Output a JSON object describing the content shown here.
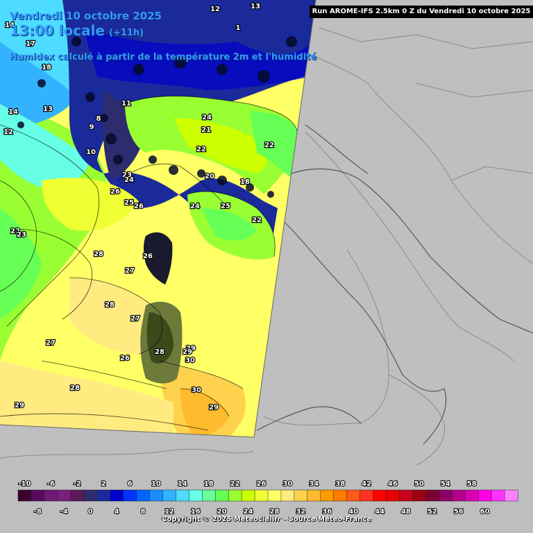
{
  "header": {
    "date": "Vendredi 10 octobre 2025",
    "time": "13:00 locale",
    "time_sub": "(+11h)",
    "description": "Humidex calculé à partir de la température 2m et l'humidité",
    "run": "Run AROME-IFS 2.5km 0 Z du Vendredi 10 octobre 2025"
  },
  "map": {
    "region": "Corse, Sardaigne, mer Tyrrhénienne, Italie",
    "field_labels": [
      "12",
      "13",
      "14",
      "18",
      "17",
      "1",
      "8",
      "9",
      "11",
      "10",
      "12",
      "13",
      "14",
      "24",
      "21",
      "22",
      "23",
      "24",
      "25",
      "26",
      "22",
      "23",
      "24",
      "25",
      "26",
      "22",
      "28",
      "27",
      "26",
      "28",
      "27",
      "28",
      "26",
      "27",
      "29",
      "28",
      "29",
      "30",
      "30",
      "29",
      "29",
      "18",
      "20",
      "22"
    ]
  },
  "legend": {
    "colors": [
      "#3b0030",
      "#560a5c",
      "#6d1a76",
      "#7a1f7a",
      "#5c1a58",
      "#2c2c6e",
      "#1a2a9a",
      "#0000cc",
      "#0033ff",
      "#0066ff",
      "#1a8cff",
      "#33b3ff",
      "#4ddcff",
      "#66ffe6",
      "#66ff99",
      "#66ff55",
      "#99ff33",
      "#ccff00",
      "#eeff33",
      "#ffff66",
      "#ffeb80",
      "#ffd24d",
      "#ffbb2e",
      "#ff9900",
      "#ff7a00",
      "#ff5a1a",
      "#ff3322",
      "#ff0000",
      "#e60000",
      "#c4001a",
      "#9e0010",
      "#7a0030",
      "#8c0066",
      "#b3008c",
      "#d900b3",
      "#ff00e6",
      "#ff33ff",
      "#ff80ff"
    ],
    "top_ticks": [
      "-10",
      "-6",
      "-2",
      "2",
      "6",
      "10",
      "14",
      "18",
      "22",
      "26",
      "30",
      "34",
      "38",
      "42",
      "46",
      "50",
      "54",
      "58"
    ],
    "bottom_ticks": [
      "-8",
      "-4",
      "0",
      "4",
      "8",
      "12",
      "16",
      "20",
      "24",
      "28",
      "32",
      "36",
      "40",
      "44",
      "48",
      "52",
      "56",
      "60"
    ]
  },
  "copyright": "Copyright © 2025 Meteociel.fr - Source Meteo-France"
}
